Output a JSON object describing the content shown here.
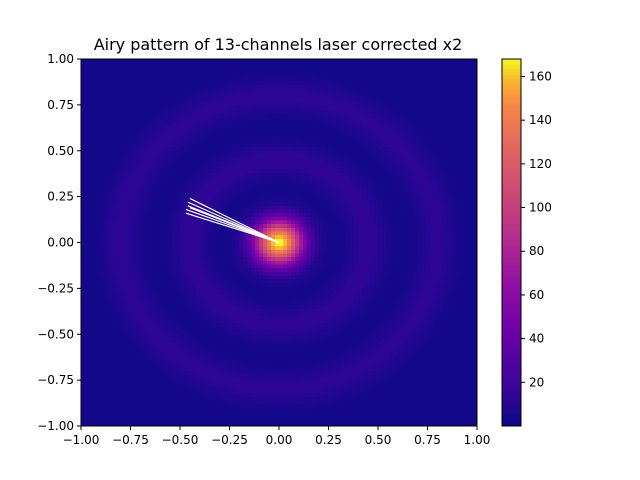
{
  "chart_data": {
    "type": "heatmap",
    "title": "Airy pattern of 13-channels laser corrected x2",
    "xlabel": "",
    "ylabel": "",
    "xlim": [
      -1.0,
      1.0
    ],
    "ylim": [
      -1.0,
      1.0
    ],
    "xticks": [
      "−1.00",
      "−0.75",
      "−0.50",
      "−0.25",
      "0.00",
      "0.25",
      "0.50",
      "0.75",
      "1.00"
    ],
    "yticks": [
      "−1.00",
      "−0.75",
      "−0.50",
      "−0.25",
      "0.00",
      "0.25",
      "0.50",
      "0.75",
      "1.00"
    ],
    "xtick_values": [
      -1.0,
      -0.75,
      -0.5,
      -0.25,
      0.0,
      0.25,
      0.5,
      0.75,
      1.0
    ],
    "ytick_values": [
      -1.0,
      -0.75,
      -0.5,
      -0.25,
      0.0,
      0.25,
      0.5,
      0.75,
      1.0
    ],
    "colormap": "plasma",
    "colorbar": {
      "min": 0,
      "max": 168,
      "ticks": [
        20,
        40,
        60,
        80,
        100,
        120,
        140,
        160
      ],
      "tick_labels": [
        "20",
        "40",
        "60",
        "80",
        "100",
        "120",
        "140",
        "160"
      ]
    },
    "peak": {
      "x": 0.0,
      "y": 0.0,
      "value": 168
    },
    "ring_peaks_radius": [
      0.45,
      0.8
    ],
    "beam_lines": {
      "color": "#ffffff",
      "origin": [
        0.0,
        0.0
      ],
      "endpoints": [
        [
          -0.45,
          0.24
        ],
        [
          -0.46,
          0.2
        ],
        [
          -0.47,
          0.18
        ],
        [
          -0.47,
          0.16
        ],
        [
          -0.46,
          0.22
        ],
        [
          -0.45,
          0.19
        ]
      ]
    },
    "grid": false
  }
}
